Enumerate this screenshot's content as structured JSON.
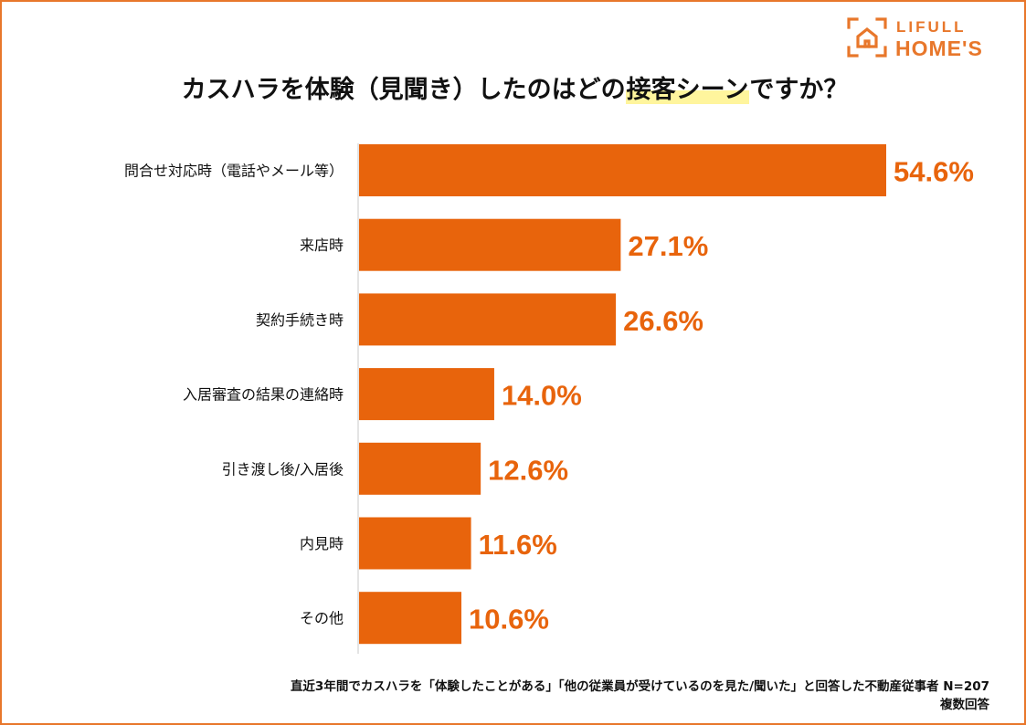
{
  "logo": {
    "line1": "LIFULL",
    "line2": "HOME'S",
    "icon": "house-bracket-icon",
    "color": "#e8772b"
  },
  "title": {
    "before": "カスハラを体験（見聞き）したのはどの",
    "highlight": "接客シーン",
    "after": "ですか？",
    "highlight_color": "#fff59d"
  },
  "chart_data": {
    "type": "bar",
    "orientation": "horizontal",
    "categories": [
      "問合せ対応時（電話やメール等）",
      "来店時",
      "契約手続き時",
      "入居審査の結果の連絡時",
      "引き渡し後/入居後",
      "内見時",
      "その他"
    ],
    "values": [
      54.6,
      27.1,
      26.6,
      14.0,
      12.6,
      11.6,
      10.6
    ],
    "value_labels": [
      "54.6%",
      "27.1%",
      "26.6%",
      "14.0%",
      "12.6%",
      "11.6%",
      "10.6%"
    ],
    "unit": "%",
    "xlim": [
      0,
      60
    ],
    "bar_color": "#e8640c",
    "label_color": "#e8640c",
    "grid": false
  },
  "footnote": {
    "line1": "直近3年間でカスハラを「体験したことがある」「他の従業員が受けているのを見た/聞いた」と回答した不動産従事者 N=207",
    "line2": "複数回答"
  }
}
